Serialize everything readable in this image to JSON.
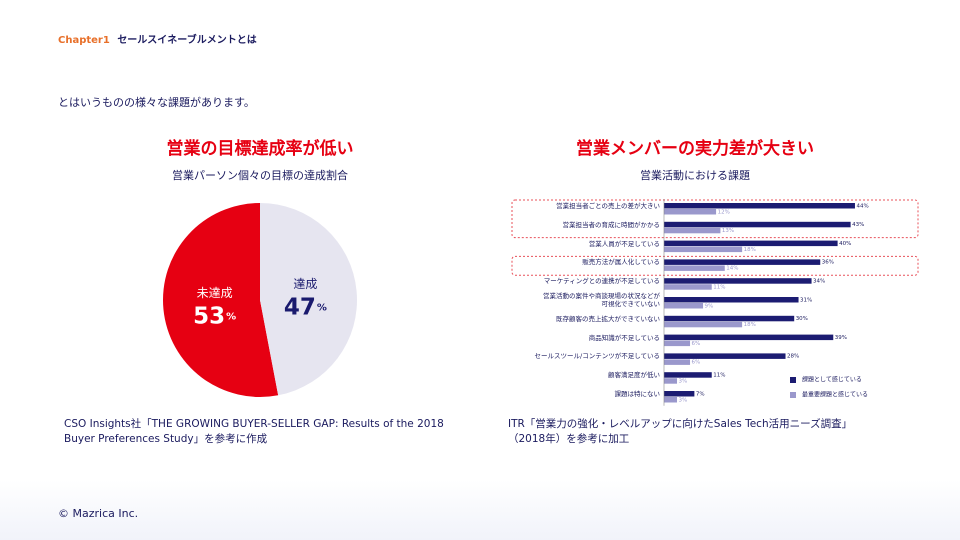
{
  "header": {
    "chapter": "Chapter1",
    "title": "セールスイネーブルメントとは"
  },
  "intro": "とはいうものの様々な課題があります。",
  "chart_data": [
    {
      "type": "pie",
      "heading": "営業の目標達成率が低い",
      "title": "営業パーソン個々の目標の達成割合",
      "categories": [
        "未達成",
        "達成"
      ],
      "values": [
        53,
        47
      ],
      "unit": "%",
      "colors": [
        "#e60012",
        "#e6e5f0"
      ],
      "label_colors": [
        "#ffffff",
        "#1a1a6e"
      ],
      "source": "CSO Insights社「THE GROWING BUYER-SELLER GAP: Results of the 2018 Buyer Preferences Study」を参考に作成"
    },
    {
      "type": "bar",
      "orientation": "horizontal",
      "heading": "営業メンバーの実力差が大きい",
      "title": "営業活動における課題",
      "categories": [
        "営業担当者ごとの売上の差が大きい",
        "営業担当者の育成に時間がかかる",
        "営業人員が不足している",
        "販売方法が属人化している",
        "マーケティングとの連携が不足している",
        "営業活動の案件や商談現場の状況などが\n可視化できていない",
        "既存顧客の売上拡大ができていない",
        "商品知識が不足している",
        "セールスツール/コンテンツが不足している",
        "顧客満足度が低い",
        "課題は特にない"
      ],
      "series": [
        {
          "name": "課題として感じている",
          "color": "#1c1c72",
          "values": [
            44,
            43,
            40,
            36,
            34,
            31,
            30,
            39,
            28,
            11,
            7
          ],
          "value_labels": [
            "44%",
            "43%",
            "40%",
            "36%",
            "34%",
            "31%",
            "30%",
            "39%",
            "28%",
            "11%",
            "7%"
          ]
        },
        {
          "name": "最重要課題と感じている",
          "color": "#9a98cc",
          "values": [
            12,
            13,
            18,
            14,
            11,
            9,
            18,
            6,
            6,
            3,
            3
          ],
          "value_labels": [
            "12%",
            "13%",
            "18%",
            "14%",
            "11%",
            "9%",
            "18%",
            "6%",
            "6%",
            "3%",
            "3%"
          ]
        }
      ],
      "source": "ITR「営業力の強化・レベルアップに向けたSales Tech活用ニーズ調査」（2018年）を参考に加工"
    }
  ],
  "footer": "© Mazrica Inc."
}
